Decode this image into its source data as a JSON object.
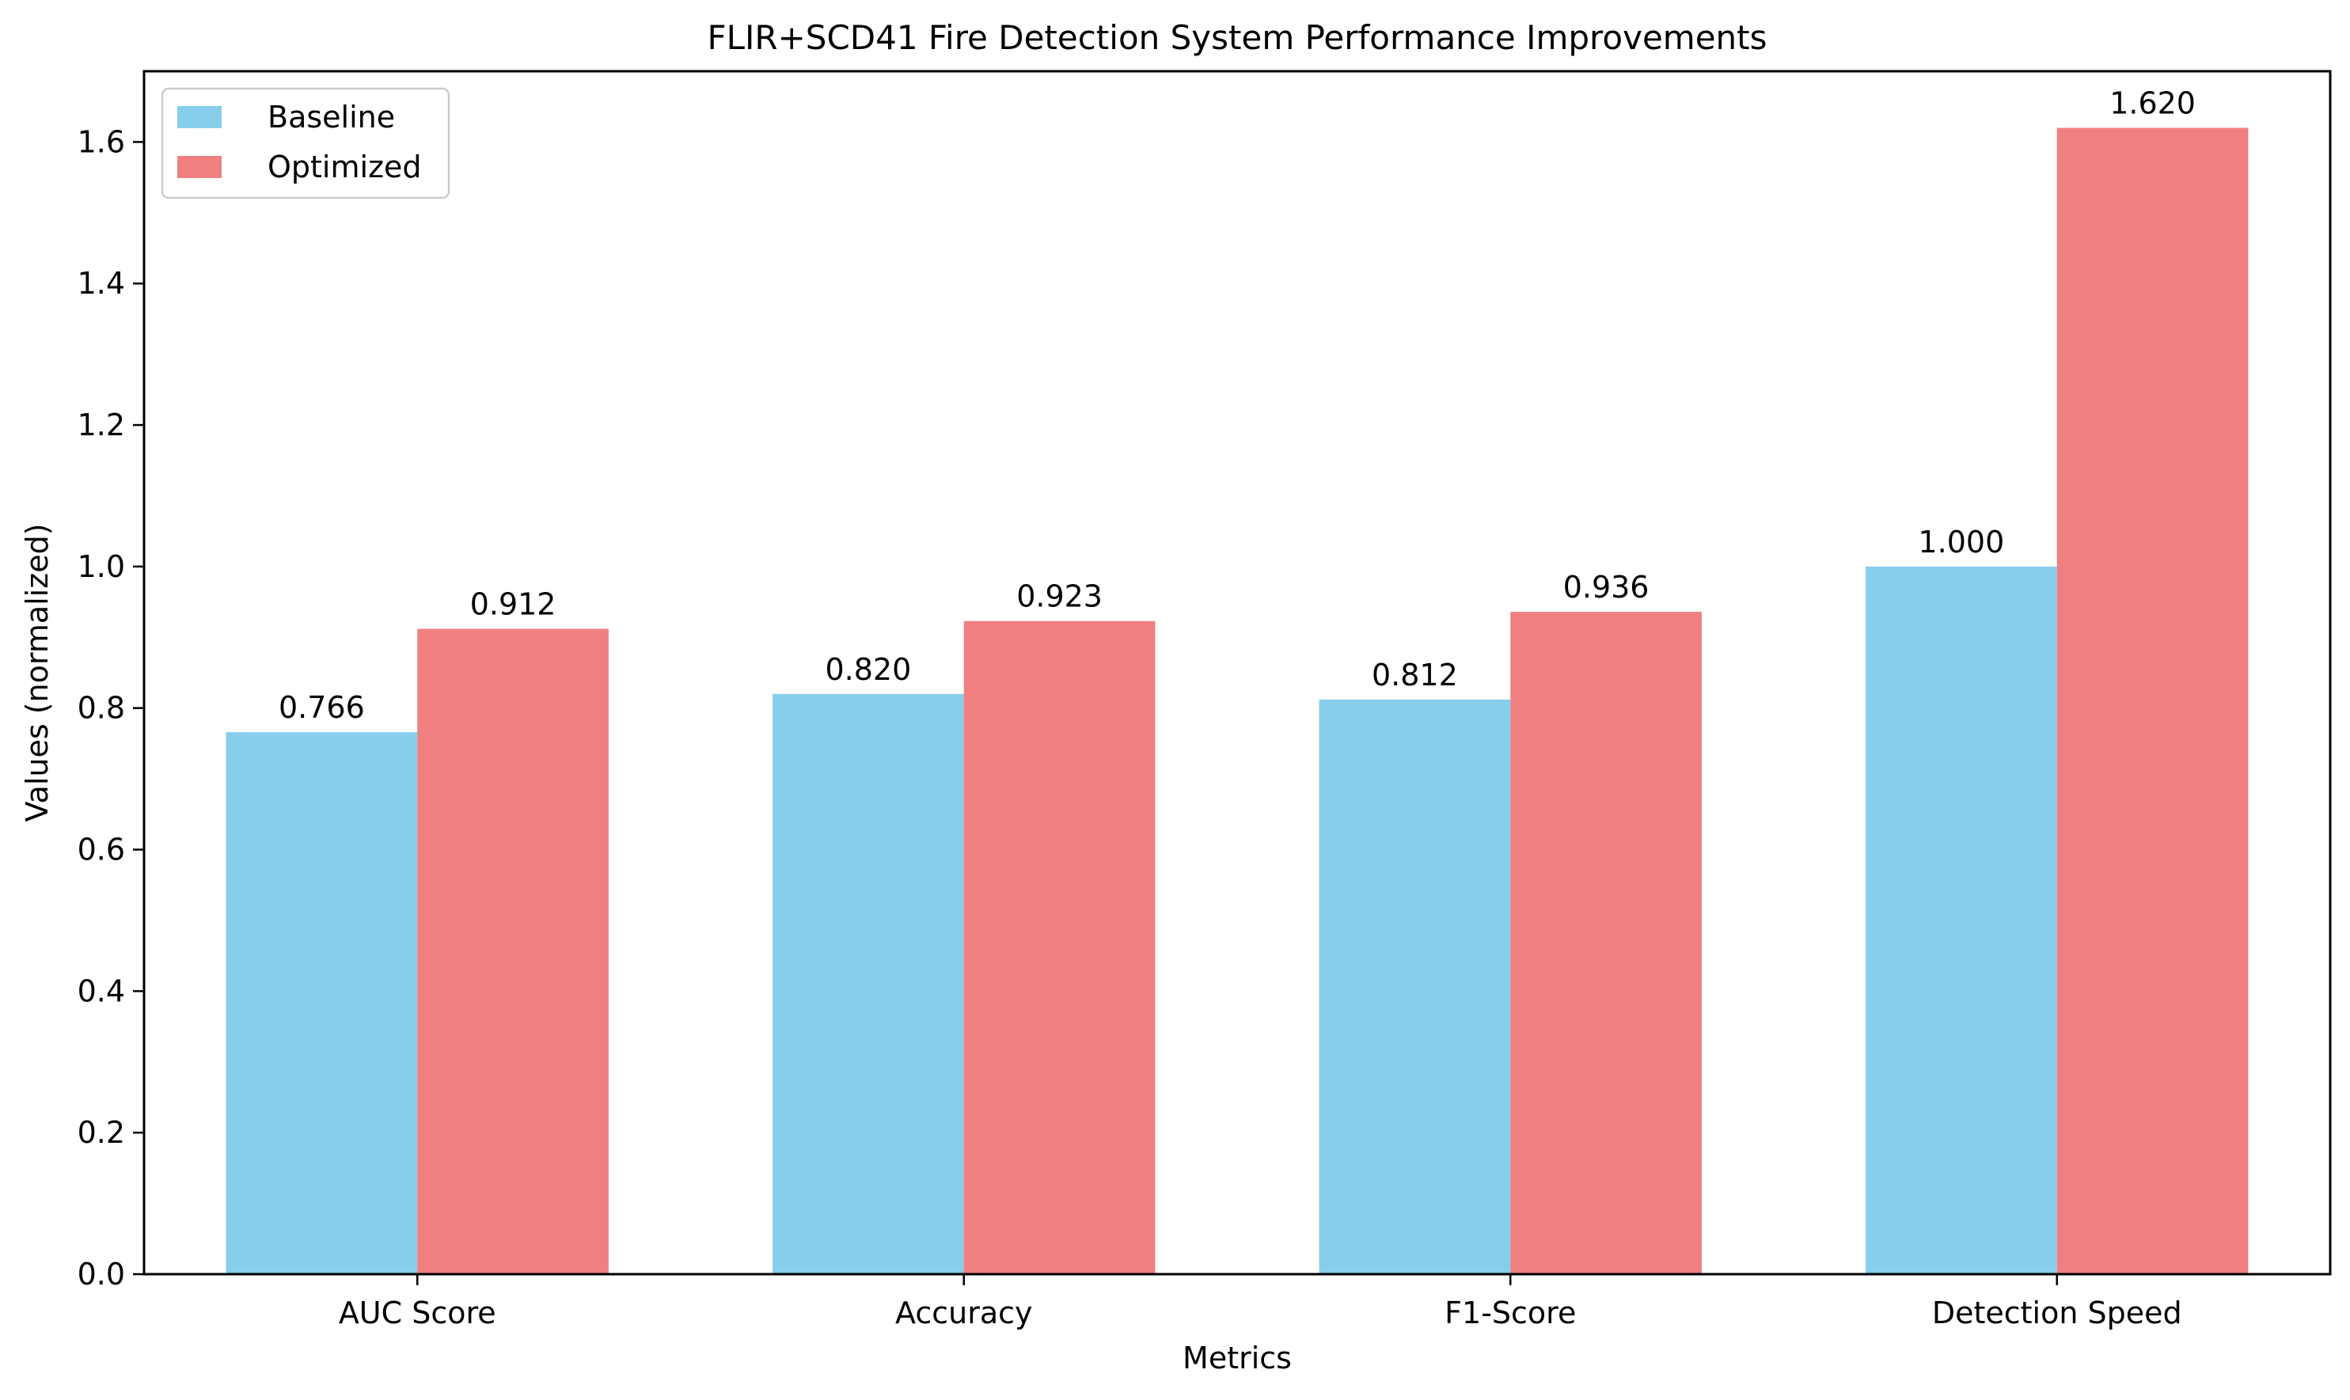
{
  "chart_data": {
    "type": "bar",
    "title": "FLIR+SCD41 Fire Detection System Performance Improvements",
    "xlabel": "Metrics",
    "ylabel": "Values (normalized)",
    "categories": [
      "AUC Score",
      "Accuracy",
      "F1-Score",
      "Detection Speed"
    ],
    "series": [
      {
        "name": "Baseline",
        "color": "#87CEEB",
        "values": [
          0.766,
          0.82,
          0.812,
          1.0
        ],
        "labels": [
          "0.766",
          "0.820",
          "0.812",
          "1.000"
        ]
      },
      {
        "name": "Optimized",
        "color": "#F08080",
        "values": [
          0.912,
          0.923,
          0.936,
          1.62
        ],
        "labels": [
          "0.912",
          "0.923",
          "0.936",
          "1.620"
        ]
      }
    ],
    "ylim": [
      0,
      1.7
    ],
    "yticks": [
      0.0,
      0.2,
      0.4,
      0.6,
      0.8,
      1.0,
      1.2,
      1.4,
      1.6
    ],
    "ytick_labels": [
      "0.0",
      "0.2",
      "0.4",
      "0.6",
      "0.8",
      "1.0",
      "1.2",
      "1.4",
      "1.6"
    ],
    "grid": false,
    "legend_position": "top-left"
  }
}
